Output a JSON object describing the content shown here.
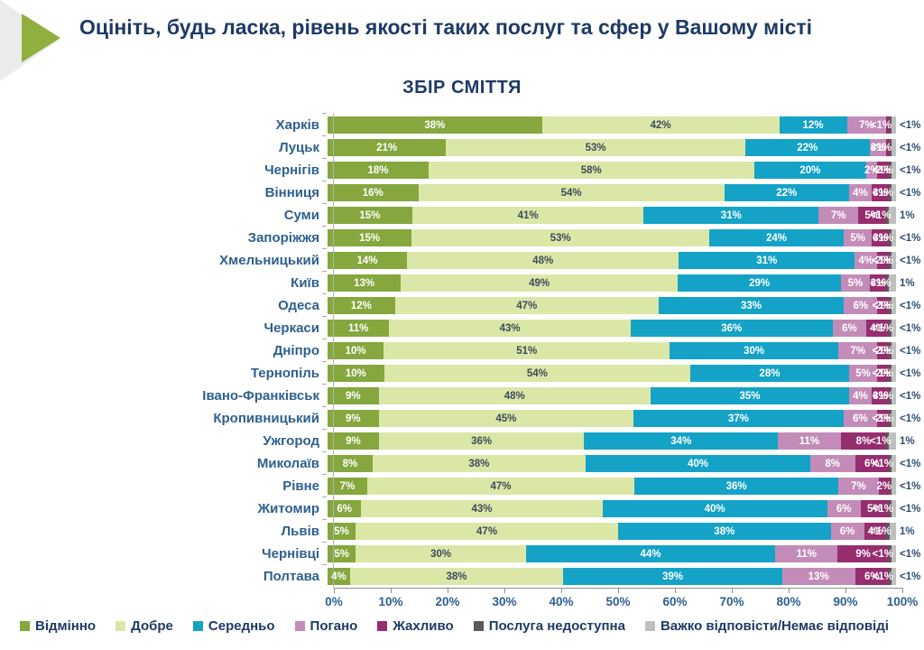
{
  "header": {
    "title": "Оцініть, будь ласка, рівень якості таких послуг та сфер у Вашому місті"
  },
  "colors": {
    "title_text": "#1e3a66",
    "axis_text": "#2e6090",
    "arrow_green": "#90b03d",
    "corner_gray": "#ebebeb"
  },
  "chart_data": {
    "type": "bar",
    "orientation": "horizontal",
    "stacked": true,
    "title": "ЗБІР СМІТТЯ",
    "xlim": [
      0,
      100
    ],
    "x_ticks": [
      "0%",
      "10%",
      "20%",
      "30%",
      "40%",
      "50%",
      "60%",
      "70%",
      "80%",
      "90%",
      "100%"
    ],
    "legend_position": "bottom",
    "series": [
      {
        "label": "Відмінно",
        "color": "#85a73e"
      },
      {
        "label": "Добре",
        "color": "#dbe7a6"
      },
      {
        "label": "Середньо",
        "color": "#14a3c7"
      },
      {
        "label": "Погано",
        "color": "#c38cb8"
      },
      {
        "label": "Жахливо",
        "color": "#962d6f"
      },
      {
        "label": "Послуга недоступна",
        "color": "#595959"
      },
      {
        "label": "Важко відповісти/Немає відповіді",
        "color": "#bfbfbf"
      }
    ],
    "rows": [
      {
        "city": "Харків",
        "values": [
          38,
          42,
          12,
          7,
          0.6,
          0.3,
          0.8
        ],
        "labels": [
          "38%",
          "42%",
          "12%",
          "7%",
          "<1%",
          "",
          ""
        ],
        "outside": "<1%"
      },
      {
        "city": "Луцьк",
        "values": [
          21,
          53,
          22,
          3,
          0.6,
          0.3,
          0.8
        ],
        "labels": [
          "21%",
          "53%",
          "22%",
          "3%",
          "<1%",
          "",
          ""
        ],
        "outside": "<1%"
      },
      {
        "city": "Чернігів",
        "values": [
          18,
          58,
          20,
          2,
          2,
          0.5,
          0.8
        ],
        "labels": [
          "18%",
          "58%",
          "20%",
          "2%",
          "2%",
          "<1%",
          ""
        ],
        "outside": "<1%"
      },
      {
        "city": "Вінниця",
        "values": [
          16,
          54,
          22,
          4,
          3,
          0.5,
          0.8
        ],
        "labels": [
          "16%",
          "54%",
          "22%",
          "4%",
          "3%",
          "<1%",
          ""
        ],
        "outside": "<1%"
      },
      {
        "city": "Суми",
        "values": [
          15,
          41,
          31,
          7,
          5,
          0.5,
          1.2
        ],
        "labels": [
          "15%",
          "41%",
          "31%",
          "7%",
          "5%",
          "<1%",
          ""
        ],
        "outside": "1%"
      },
      {
        "city": "Запоріжжя",
        "values": [
          15,
          53,
          24,
          5,
          3,
          0.5,
          0.8
        ],
        "labels": [
          "15%",
          "53%",
          "24%",
          "5%",
          "3%",
          "<1%",
          ""
        ],
        "outside": "<1%"
      },
      {
        "city": "Хмельницький",
        "values": [
          14,
          48,
          31,
          4,
          2,
          0.5,
          0.8
        ],
        "labels": [
          "14%",
          "48%",
          "31%",
          "4%",
          "2%",
          "<1%",
          ""
        ],
        "outside": "<1%"
      },
      {
        "city": "Київ",
        "values": [
          13,
          49,
          29,
          5,
          3,
          0.5,
          1.2
        ],
        "labels": [
          "13%",
          "49%",
          "29%",
          "5%",
          "3%",
          "<1%",
          ""
        ],
        "outside": "1%"
      },
      {
        "city": "Одеса",
        "values": [
          12,
          47,
          33,
          6,
          2,
          0.5,
          0.8
        ],
        "labels": [
          "12%",
          "47%",
          "33%",
          "6%",
          "2%",
          "<1%",
          ""
        ],
        "outside": "<1%"
      },
      {
        "city": "Черкаси",
        "values": [
          11,
          43,
          36,
          6,
          4,
          0.5,
          0.8
        ],
        "labels": [
          "11%",
          "43%",
          "36%",
          "6%",
          "4%",
          "<1%",
          ""
        ],
        "outside": "<1%"
      },
      {
        "city": "Дніпро",
        "values": [
          10,
          51,
          30,
          7,
          2,
          0.5,
          0.8
        ],
        "labels": [
          "10%",
          "51%",
          "30%",
          "7%",
          "2%",
          "<1%",
          ""
        ],
        "outside": "<1%"
      },
      {
        "city": "Тернопіль",
        "values": [
          10,
          54,
          28,
          5,
          2,
          0.5,
          0.8
        ],
        "labels": [
          "10%",
          "54%",
          "28%",
          "5%",
          "2%",
          "<1%",
          ""
        ],
        "outside": "<1%"
      },
      {
        "city": "Івано-Франківськ",
        "values": [
          9,
          48,
          35,
          4,
          3,
          0.5,
          0.8
        ],
        "labels": [
          "9%",
          "48%",
          "35%",
          "4%",
          "3%",
          "<1%",
          ""
        ],
        "outside": "<1%"
      },
      {
        "city": "Кропивницький",
        "values": [
          9,
          45,
          37,
          6,
          2,
          0.5,
          0.8
        ],
        "labels": [
          "9%",
          "45%",
          "37%",
          "6%",
          "2%",
          "<1%",
          ""
        ],
        "outside": "<1%"
      },
      {
        "city": "Ужгород",
        "values": [
          9,
          36,
          34,
          11,
          8,
          0.5,
          1.2
        ],
        "labels": [
          "9%",
          "36%",
          "34%",
          "11%",
          "8%",
          "<1%",
          ""
        ],
        "outside": "1%"
      },
      {
        "city": "Миколаїв",
        "values": [
          8,
          38,
          40,
          8,
          6,
          0.5,
          0.8
        ],
        "labels": [
          "8%",
          "38%",
          "40%",
          "8%",
          "6%",
          "<1%",
          ""
        ],
        "outside": "<1%"
      },
      {
        "city": "Рівне",
        "values": [
          7,
          47,
          36,
          7,
          2,
          0.3,
          0.8
        ],
        "labels": [
          "7%",
          "47%",
          "36%",
          "7%",
          "2%",
          "",
          ""
        ],
        "outside": "<1%"
      },
      {
        "city": "Житомир",
        "values": [
          6,
          43,
          40,
          6,
          5,
          0.5,
          0.8
        ],
        "labels": [
          "6%",
          "43%",
          "40%",
          "6%",
          "5%",
          "<1%",
          ""
        ],
        "outside": "<1%"
      },
      {
        "city": "Львів",
        "values": [
          5,
          47,
          38,
          6,
          4,
          0.5,
          1.2
        ],
        "labels": [
          "5%",
          "47%",
          "38%",
          "6%",
          "4%",
          "<1%",
          ""
        ],
        "outside": "1%"
      },
      {
        "city": "Чернівці",
        "values": [
          5,
          30,
          44,
          11,
          9,
          0.5,
          0.8
        ],
        "labels": [
          "5%",
          "30%",
          "44%",
          "11%",
          "9%",
          "<1%",
          ""
        ],
        "outside": "<1%"
      },
      {
        "city": "Полтава",
        "values": [
          4,
          38,
          39,
          13,
          6,
          0.5,
          0.8
        ],
        "labels": [
          "4%",
          "38%",
          "39%",
          "13%",
          "6%",
          "<1%",
          ""
        ],
        "outside": "<1%"
      }
    ]
  }
}
